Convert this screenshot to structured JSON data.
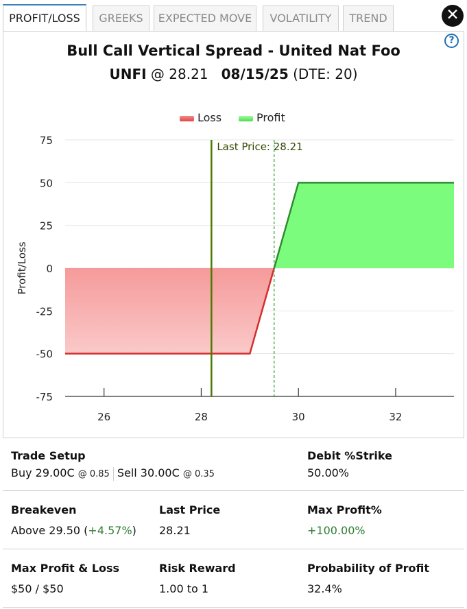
{
  "tabs": [
    {
      "label": "PROFIT/LOSS",
      "active": true
    },
    {
      "label": "GREEKS",
      "active": false
    },
    {
      "label": "EXPECTED MOVE",
      "active": false
    },
    {
      "label": "VOLATILITY",
      "active": false
    },
    {
      "label": "TREND",
      "active": false
    }
  ],
  "close_icon": "close-x-icon",
  "help_icon": "?",
  "header": {
    "title": "Bull Call Vertical Spread - United Nat Foo",
    "symbol": "UNFI",
    "at_price": " @ 28.21   ",
    "expiry": "08/15/25",
    "dte": " (DTE: 20)"
  },
  "chart_data": {
    "type": "area",
    "ylabel": "Profit/Loss",
    "xlabel": "",
    "x_ticks": [
      "26",
      "28",
      "30",
      "32"
    ],
    "y_ticks": [
      "75",
      "50",
      "25",
      "0",
      "-25",
      "-50",
      "-75"
    ],
    "xlim": [
      25.2,
      33.2
    ],
    "ylim": [
      -75,
      75
    ],
    "legend": [
      "Loss",
      "Profit"
    ],
    "legend_position": "top-center",
    "series": [
      {
        "name": "Loss",
        "x": [
          25.2,
          29.0,
          29.5
        ],
        "y": [
          -50,
          -50,
          0
        ],
        "color": "#f08080"
      },
      {
        "name": "Profit",
        "x": [
          29.5,
          30.0,
          33.2
        ],
        "y": [
          0,
          50,
          50
        ],
        "color": "#7cfc7c"
      }
    ],
    "last_price": 28.21,
    "last_price_label": "Last Price: 28.21",
    "breakeven": 29.5,
    "grid": true
  },
  "stats": {
    "trade_setup_label": "Trade Setup",
    "buy_text": "Buy 29.00C",
    "buy_price": "@ 0.85",
    "sell_text": "Sell 30.00C",
    "sell_price": "@ 0.35",
    "debit_label": "Debit %Strike",
    "debit_value": "50.00%",
    "breakeven_label": "Breakeven",
    "breakeven_value": "Above 29.50 (",
    "breakeven_pct": "+4.57%",
    "breakeven_close": ")",
    "last_price_label": "Last Price",
    "last_price_value": "28.21",
    "max_profit_pct_label": "Max Profit%",
    "max_profit_pct_value": "+100.00%",
    "max_pl_label": "Max Profit & Loss",
    "max_pl_value": "$50 / $50",
    "risk_reward_label": "Risk Reward",
    "risk_reward_value": "1.00 to 1",
    "pop_label": "Probability of Profit",
    "pop_value": "32.4%"
  },
  "colors": {
    "accent": "#3d7fb8",
    "loss_line": "#d32f2f",
    "profit_line": "#2e8b2e",
    "last_price_line": "#4d7a00",
    "breakeven_line": "#2e9b2e",
    "positive_text": "#2e7d32"
  }
}
